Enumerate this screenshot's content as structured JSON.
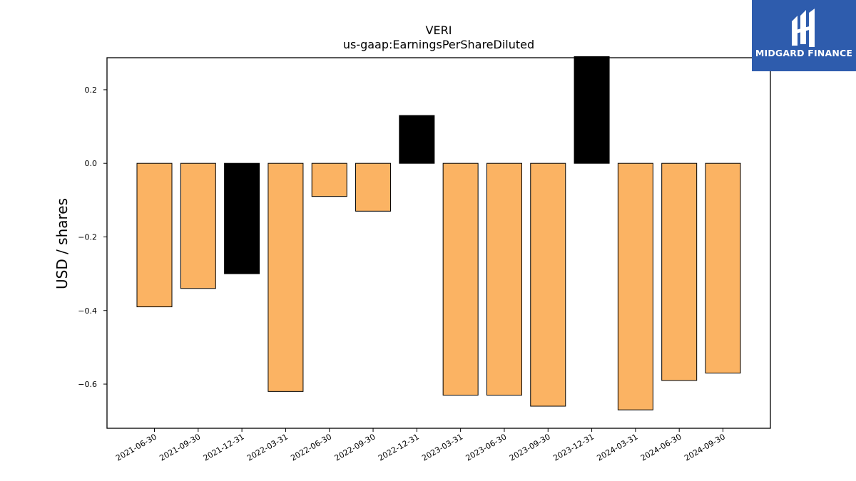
{
  "chart_data": {
    "type": "bar",
    "title": "VERI",
    "subtitle": "us-gaap:EarningsPerShareDiluted",
    "ylabel": "USD / shares",
    "xlabel": "",
    "categories": [
      "2021-06-30",
      "2021-09-30",
      "2021-12-31",
      "2022-03-31",
      "2022-06-30",
      "2022-09-30",
      "2022-12-31",
      "2023-03-31",
      "2023-06-30",
      "2023-09-30",
      "2023-12-31",
      "2024-03-31",
      "2024-06-30",
      "2024-09-30"
    ],
    "values": [
      -0.39,
      -0.34,
      -0.3,
      -0.62,
      -0.09,
      -0.13,
      0.13,
      -0.63,
      -0.63,
      -0.66,
      0.29,
      -0.67,
      -0.59,
      -0.57
    ],
    "bar_colors": [
      "#fbb363",
      "#fbb363",
      "#000000",
      "#fbb363",
      "#fbb363",
      "#fbb363",
      "#000000",
      "#fbb363",
      "#fbb363",
      "#fbb363",
      "#000000",
      "#fbb363",
      "#fbb363",
      "#fbb363"
    ],
    "ylim": [
      -0.72,
      0.287
    ],
    "yticks": [
      0.2,
      0.0,
      -0.2,
      -0.4,
      -0.6
    ],
    "ytick_labels": [
      "0.2",
      "0.0",
      "−0.2",
      "−0.4",
      "−0.6"
    ],
    "grid": false,
    "legend": "none"
  },
  "logo": {
    "text": "MIDGARD FINANCE",
    "background": "#2e5cad"
  }
}
